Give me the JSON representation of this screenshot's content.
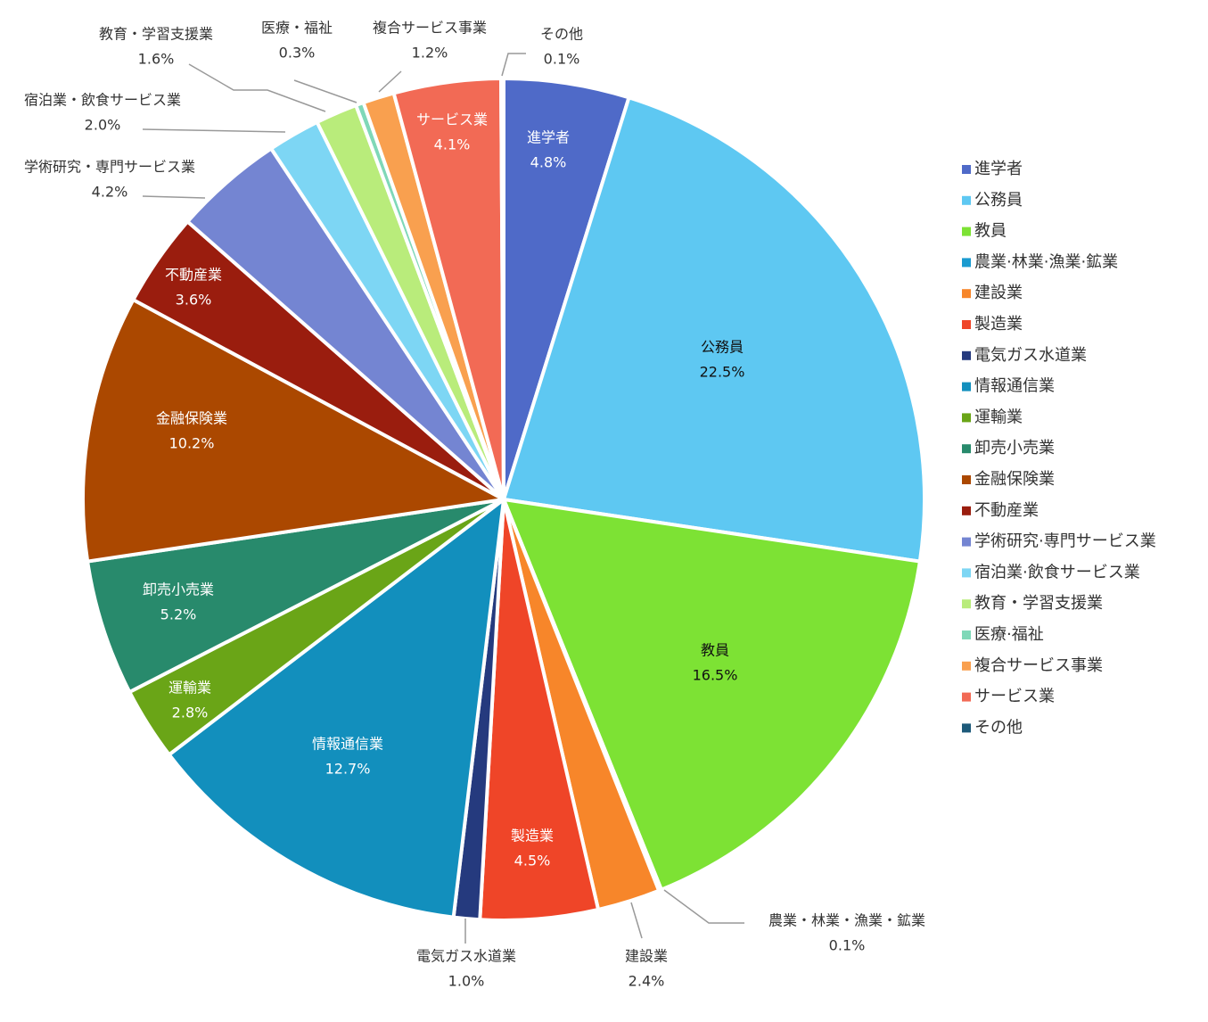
{
  "chart_data": {
    "type": "pie",
    "categories": [
      "進学者",
      "公務員",
      "教員",
      "農業·林業·漁業·鉱業",
      "建設業",
      "製造業",
      "電気ガス水道業",
      "情報通信業",
      "運輸業",
      "卸売小売業",
      "金融保険業",
      "不動産業",
      "学術研究·専門サービス業",
      "宿泊業·飲食サービス業",
      "教育・学習支援業",
      "医療·福祉",
      "複合サービス事業",
      "サービス業",
      "その他"
    ],
    "labels": [
      "進学者",
      "公務員",
      "教員",
      "農業・林業・漁業・鉱業",
      "建設業",
      "製造業",
      "電気ガス水道業",
      "情報通信業",
      "運輸業",
      "卸売小売業",
      "金融保険業",
      "不動産業",
      "学術研究・専門サービス業",
      "宿泊業・飲食サービス業",
      "教育・学習支援業",
      "医療・福祉",
      "複合サービス事業",
      "サービス業",
      "その他"
    ],
    "values": [
      4.8,
      22.5,
      16.5,
      0.1,
      2.4,
      4.5,
      1.0,
      12.7,
      2.8,
      5.2,
      10.2,
      3.6,
      4.2,
      2.0,
      1.6,
      0.3,
      1.2,
      4.1,
      0.1
    ],
    "value_labels": [
      "4.8%",
      "22.5%",
      "16.5%",
      "0.1%",
      "2.4%",
      "4.5%",
      "1.0%",
      "12.7%",
      "2.8%",
      "5.2%",
      "10.2%",
      "3.6%",
      "4.2%",
      "2.0%",
      "1.6%",
      "0.3%",
      "1.2%",
      "4.1%",
      "0.1%"
    ],
    "colors": [
      "#4f6ac8",
      "#5ec8f2",
      "#7de234",
      "#1a9bd0",
      "#f7862a",
      "#ef4528",
      "#253a7e",
      "#128fbd",
      "#6aa517",
      "#288a6c",
      "#ab4800",
      "#9a1d0e",
      "#7485d2",
      "#7dd6f4",
      "#b9ec7b",
      "#7fd8b8",
      "#f9a04f",
      "#f26a55",
      "#1d5a7a"
    ],
    "legend": "right"
  }
}
